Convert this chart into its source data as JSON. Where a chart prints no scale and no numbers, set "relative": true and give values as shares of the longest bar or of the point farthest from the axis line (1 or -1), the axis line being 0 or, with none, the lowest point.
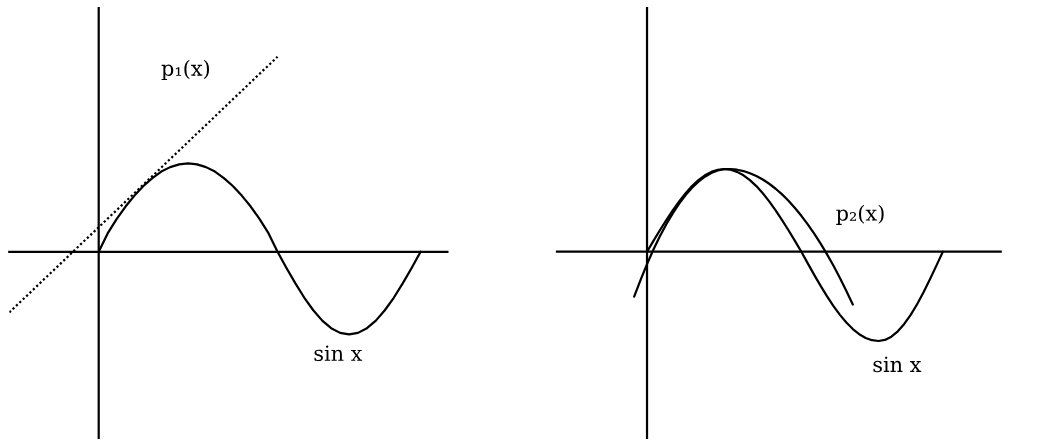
{
  "chart_data": [
    {
      "type": "line",
      "relative": true,
      "categories": [
        null,
        null,
        null,
        null,
        null,
        null,
        null,
        null,
        null,
        null,
        null,
        null,
        null,
        null,
        null,
        null,
        null,
        null,
        null,
        null,
        null,
        null,
        null,
        null,
        null,
        null,
        null,
        null,
        null,
        null,
        null,
        null,
        null,
        null,
        null,
        null,
        null,
        null,
        null,
        null,
        null,
        null,
        null,
        null,
        null,
        null,
        null,
        null,
        null,
        null
      ],
      "series": [
        {
          "name": "sin x",
          "color": "#000000",
          "line_style": "solid",
          "values": [
            null,
            null,
            null,
            null,
            null,
            null,
            null,
            null,
            null,
            null,
            0,
            0.094,
            0.167,
            0.232,
            0.288,
            0.337,
            0.378,
            0.411,
            0.434,
            0.448,
            0.453,
            0.448,
            0.434,
            0.411,
            0.378,
            0.337,
            0.288,
            0.232,
            0.167,
            0.094,
            0,
            -0.083,
            -0.162,
            -0.236,
            -0.3,
            -0.353,
            -0.392,
            -0.416,
            -0.424,
            -0.416,
            -0.392,
            -0.353,
            -0.3,
            -0.236,
            -0.162,
            -0.083,
            0,
            null,
            null,
            null
          ]
        },
        {
          "name": "p₁(x)",
          "color": "#000000",
          "line_style": "dotted",
          "values": [
            -0.311,
            -0.267,
            -0.224,
            -0.18,
            -0.136,
            -0.093,
            -0.049,
            -0.005,
            0.039,
            0.082,
            0.126,
            0.17,
            0.213,
            0.257,
            0.301,
            0.345,
            0.388,
            0.432,
            0.476,
            0.519,
            0.563,
            0.607,
            0.65,
            0.694,
            0.738,
            0.782,
            0.825,
            0.869,
            0.913,
            0.956,
            1,
            null,
            null,
            null,
            null,
            null,
            null,
            null,
            null,
            null,
            null,
            null,
            null,
            null,
            null,
            null,
            null,
            null,
            null,
            null
          ]
        }
      ]
    },
    {
      "type": "line",
      "relative": true,
      "categories": [
        null,
        null,
        null,
        null,
        null,
        null,
        null,
        null,
        null,
        null,
        null,
        null,
        null,
        null,
        null,
        null,
        null,
        null,
        null,
        null,
        null,
        null,
        null,
        null,
        null,
        null,
        null,
        null,
        null,
        null,
        null,
        null,
        null,
        null,
        null,
        null,
        null,
        null,
        null,
        null,
        null,
        null,
        null,
        null,
        null,
        null,
        null,
        null,
        null,
        null,
        null,
        null,
        null,
        null,
        null,
        null,
        null,
        null,
        null,
        null,
        null,
        null,
        null,
        null,
        null,
        null,
        null,
        null,
        null,
        null
      ],
      "series": [
        {
          "name": "sin x",
          "color": "#000000",
          "line_style": "solid",
          "values": [
            null,
            null,
            null,
            null,
            null,
            null,
            null,
            null,
            null,
            null,
            null,
            null,
            null,
            null,
            0,
            0.121,
            0.24,
            0.354,
            0.463,
            0.564,
            0.655,
            0.735,
            0.802,
            0.856,
            0.894,
            0.918,
            0.926,
            0.918,
            0.894,
            0.856,
            0.802,
            0.735,
            0.655,
            0.564,
            0.463,
            0.354,
            0.24,
            0.121,
            0,
            -0.131,
            -0.259,
            -0.383,
            -0.5,
            -0.609,
            -0.707,
            -0.793,
            -0.866,
            -0.924,
            -0.966,
            -0.991,
            -1,
            -0.988,
            -0.951,
            -0.891,
            -0.809,
            -0.707,
            -0.588,
            -0.454,
            -0.309,
            -0.156,
            0,
            null,
            null,
            null,
            null,
            null,
            null,
            null,
            null,
            null
          ]
        },
        {
          "name": "p₂(x)",
          "color": "#000000",
          "line_style": "solid",
          "values": [
            null,
            null,
            null,
            null,
            null,
            null,
            null,
            null,
            null,
            null,
            null,
            null,
            -0.504,
            -0.315,
            -0.139,
            0.024,
            0.172,
            0.308,
            0.43,
            0.539,
            0.634,
            0.716,
            0.784,
            0.84,
            0.881,
            0.909,
            0.924,
            0.925,
            0.918,
            0.903,
            0.879,
            0.848,
            0.808,
            0.761,
            0.705,
            0.642,
            0.57,
            0.49,
            0.402,
            0.306,
            0.202,
            0.09,
            -0.03,
            -0.158,
            -0.294,
            -0.439,
            -0.591,
            null,
            null,
            null,
            null,
            null,
            null,
            null,
            null,
            null,
            null,
            null,
            null,
            null,
            null,
            null,
            null,
            null,
            null,
            null,
            null,
            null,
            null,
            null
          ]
        }
      ]
    }
  ]
}
